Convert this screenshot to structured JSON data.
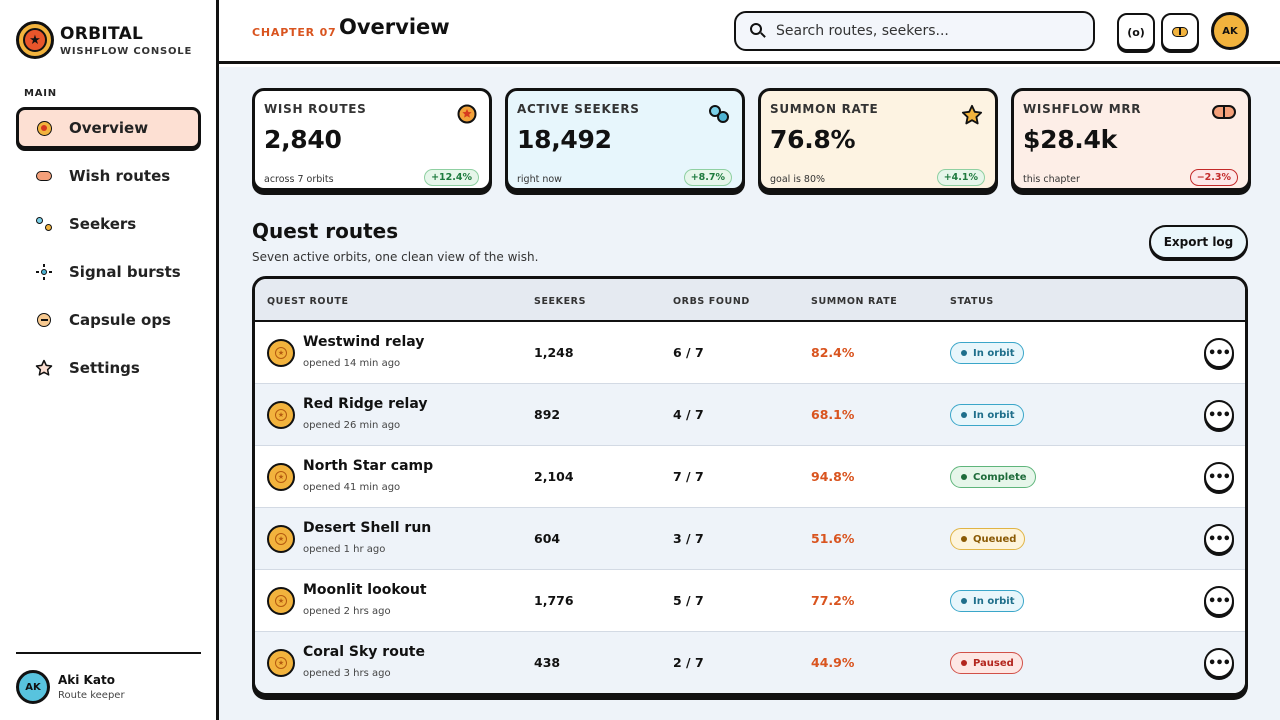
{
  "brand": {
    "name": "ORBITAL",
    "subtitle": "WISHFLOW CONSOLE"
  },
  "sidebar": {
    "section_label": "MAIN",
    "items": [
      {
        "label": "Overview",
        "icon": "orb-icon",
        "active": true
      },
      {
        "label": "Wish routes",
        "icon": "route-pill-icon",
        "active": false
      },
      {
        "label": "Seekers",
        "icon": "seekers-icon",
        "active": false
      },
      {
        "label": "Signal bursts",
        "icon": "burst-icon",
        "active": false
      },
      {
        "label": "Capsule ops",
        "icon": "capsule-icon",
        "active": false
      },
      {
        "label": "Settings",
        "icon": "star-icon",
        "active": false
      }
    ],
    "profile": {
      "initials": "AK",
      "name": "Aki Kato",
      "role": "Route keeper"
    }
  },
  "header": {
    "chapter": "CHAPTER 07",
    "title": "Overview",
    "search_placeholder": "Search routes, seekers...",
    "radar_button": "(o)",
    "user_initials": "AK"
  },
  "stats": [
    {
      "label": "WISH ROUTES",
      "value": "2,840",
      "sub": "across 7 orbits",
      "delta": "+12.4%",
      "trend": "up",
      "icon": "orb-icon"
    },
    {
      "label": "ACTIVE SEEKERS",
      "value": "18,492",
      "sub": "right now",
      "delta": "+8.7%",
      "trend": "up",
      "icon": "seekers-icon"
    },
    {
      "label": "SUMMON RATE",
      "value": "76.8%",
      "sub": "goal is 80%",
      "delta": "+4.1%",
      "trend": "up",
      "icon": "star-icon"
    },
    {
      "label": "WISHFLOW MRR",
      "value": "$28.4k",
      "sub": "this chapter",
      "delta": "−2.3%",
      "trend": "down",
      "icon": "capsule-icon"
    }
  ],
  "quest": {
    "title": "Quest routes",
    "subtitle": "Seven active orbits, one clean view of the wish.",
    "export_label": "Export log",
    "columns": [
      "QUEST ROUTE",
      "SEEKERS",
      "ORBS FOUND",
      "SUMMON RATE",
      "STATUS"
    ],
    "rows": [
      {
        "name": "Westwind relay",
        "opened": "opened 14 min ago",
        "seekers": "1,248",
        "orbs": "6 / 7",
        "rate": "82.4%",
        "status": "In orbit",
        "status_kind": "orbit"
      },
      {
        "name": "Red Ridge relay",
        "opened": "opened 26 min ago",
        "seekers": "892",
        "orbs": "4 / 7",
        "rate": "68.1%",
        "status": "In orbit",
        "status_kind": "orbit"
      },
      {
        "name": "North Star camp",
        "opened": "opened 41 min ago",
        "seekers": "2,104",
        "orbs": "7 / 7",
        "rate": "94.8%",
        "status": "Complete",
        "status_kind": "complete"
      },
      {
        "name": "Desert Shell run",
        "opened": "opened 1 hr ago",
        "seekers": "604",
        "orbs": "3 / 7",
        "rate": "51.6%",
        "status": "Queued",
        "status_kind": "queued"
      },
      {
        "name": "Moonlit lookout",
        "opened": "opened 2 hrs ago",
        "seekers": "1,776",
        "orbs": "5 / 7",
        "rate": "77.2%",
        "status": "In orbit",
        "status_kind": "orbit"
      },
      {
        "name": "Coral Sky route",
        "opened": "opened 3 hrs ago",
        "seekers": "438",
        "orbs": "2 / 7",
        "rate": "44.9%",
        "status": "Paused",
        "status_kind": "paused"
      }
    ],
    "more_label": "•••"
  },
  "colors": {
    "accent_orange": "#d9541f",
    "orb_gold": "#f2b33d",
    "active_nav_bg": "#fde0d3",
    "main_bg": "#eef3f9"
  }
}
